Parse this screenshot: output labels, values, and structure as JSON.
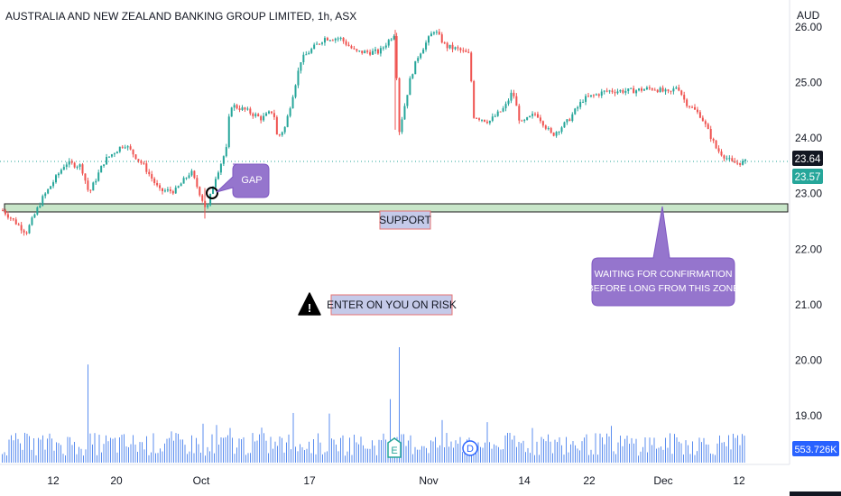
{
  "title": "AUSTRALIA AND NEW ZEALAND BANKING GROUP LIMITED, 1h, ASX",
  "currency": "AUD",
  "colors": {
    "up": "#26a69a",
    "down": "#ef5350",
    "volume": "#5b8def",
    "support_fill": "#c8e6c9",
    "callout_purple": "#9575cd",
    "label_bg": "#c5cae9",
    "price_line": "#26a69a",
    "current_badge": "#131722",
    "volume_badge": "#2962ff"
  },
  "chart_data": {
    "type": "candlestick",
    "price_axis": {
      "ticks": [
        "26.00",
        "25.00",
        "24.00",
        "23.00",
        "22.00",
        "21.00",
        "20.00",
        "19.00"
      ],
      "ylim": [
        18.5,
        26.3
      ]
    },
    "time_axis": [
      "12",
      "20",
      "Oct",
      "17",
      "Nov",
      "14",
      "22",
      "Dec",
      "12"
    ],
    "price_path": [
      [
        0,
        22.7
      ],
      [
        0.03,
        22.3
      ],
      [
        0.05,
        22.9
      ],
      [
        0.08,
        23.55
      ],
      [
        0.1,
        23.5
      ],
      [
        0.11,
        23.0
      ],
      [
        0.13,
        23.6
      ],
      [
        0.155,
        23.9
      ],
      [
        0.18,
        23.5
      ],
      [
        0.2,
        23.05
      ],
      [
        0.22,
        23.05
      ],
      [
        0.24,
        23.4
      ],
      [
        0.26,
        22.7
      ],
      [
        0.27,
        23.25
      ],
      [
        0.285,
        23.8
      ],
      [
        0.29,
        24.6
      ],
      [
        0.31,
        24.5
      ],
      [
        0.33,
        24.35
      ],
      [
        0.345,
        24.5
      ],
      [
        0.35,
        24.0
      ],
      [
        0.36,
        24.2
      ],
      [
        0.38,
        25.4
      ],
      [
        0.39,
        25.55
      ],
      [
        0.41,
        25.8
      ],
      [
        0.43,
        25.8
      ],
      [
        0.45,
        25.55
      ],
      [
        0.48,
        25.55
      ],
      [
        0.5,
        25.9
      ],
      [
        0.505,
        24.1
      ],
      [
        0.52,
        25.1
      ],
      [
        0.53,
        25.5
      ],
      [
        0.55,
        25.95
      ],
      [
        0.565,
        25.65
      ],
      [
        0.58,
        25.6
      ],
      [
        0.595,
        25.5
      ],
      [
        0.6,
        24.4
      ],
      [
        0.62,
        24.3
      ],
      [
        0.64,
        24.55
      ],
      [
        0.65,
        24.85
      ],
      [
        0.66,
        24.25
      ],
      [
        0.68,
        24.45
      ],
      [
        0.7,
        24.05
      ],
      [
        0.72,
        24.3
      ],
      [
        0.74,
        24.7
      ],
      [
        0.77,
        24.85
      ],
      [
        0.8,
        24.85
      ],
      [
        0.83,
        24.9
      ],
      [
        0.85,
        24.8
      ],
      [
        0.86,
        24.95
      ],
      [
        0.87,
        24.65
      ],
      [
        0.89,
        24.4
      ],
      [
        0.91,
        23.8
      ],
      [
        0.93,
        23.55
      ],
      [
        0.95,
        23.57
      ]
    ],
    "current_price": "23.64",
    "current_price_close": "23.57",
    "volume_label": "553.726K",
    "volume_spikes": [
      {
        "x": 0.11,
        "rel": 0.85
      },
      {
        "x": 0.505,
        "rel": 1.0
      },
      {
        "x": 0.495,
        "rel": 0.55
      },
      {
        "x": 0.37,
        "rel": 0.43
      },
      {
        "x": 0.29,
        "rel": 0.3
      }
    ],
    "support_level": [
      22.73,
      22.85
    ]
  },
  "annotations": {
    "gap": "GAP",
    "support": "SUPPORT",
    "waiting": "WAITING FOR CONFIRMATION BEFORE LONG FROM THIS ZONE",
    "risk": "ENTER ON YOU ON RISK",
    "warning_glyph": "!",
    "earnings_marker": "E",
    "dividend_marker": "D"
  }
}
